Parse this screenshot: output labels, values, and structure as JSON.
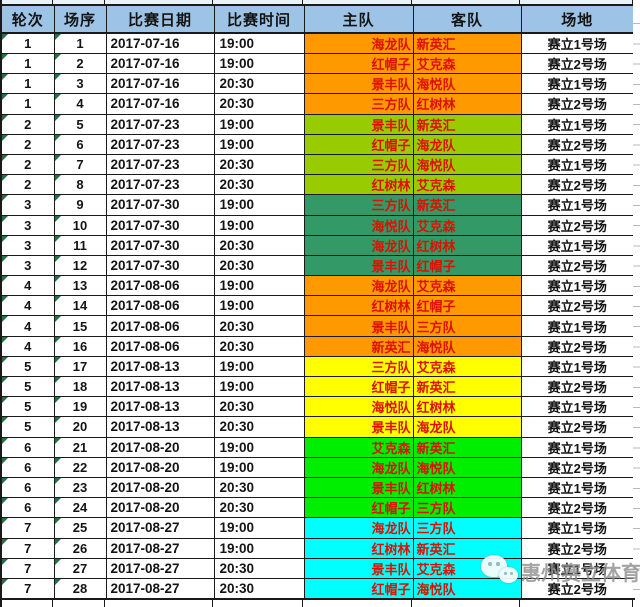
{
  "table": {
    "columns": [
      {
        "key": "round",
        "label": "轮次"
      },
      {
        "key": "match",
        "label": "场序"
      },
      {
        "key": "date",
        "label": "比赛日期"
      },
      {
        "key": "time",
        "label": "比赛时间"
      },
      {
        "key": "home",
        "label": "主队"
      },
      {
        "key": "away",
        "label": "客队"
      },
      {
        "key": "venue",
        "label": "场地"
      }
    ],
    "rows": [
      {
        "round": "1",
        "match": "1",
        "date": "2017-07-16",
        "time": "19:00",
        "home": "海龙队",
        "away": "新英汇",
        "venue": "赛立1号场"
      },
      {
        "round": "1",
        "match": "2",
        "date": "2017-07-16",
        "time": "19:00",
        "home": "红帽子",
        "away": "艾克森",
        "venue": "赛立2号场"
      },
      {
        "round": "1",
        "match": "3",
        "date": "2017-07-16",
        "time": "20:30",
        "home": "景丰队",
        "away": "海悦队",
        "venue": "赛立1号场"
      },
      {
        "round": "1",
        "match": "4",
        "date": "2017-07-16",
        "time": "20:30",
        "home": "三方队",
        "away": "红树林",
        "venue": "赛立2号场"
      },
      {
        "round": "2",
        "match": "5",
        "date": "2017-07-23",
        "time": "19:00",
        "home": "景丰队",
        "away": "新英汇",
        "venue": "赛立1号场"
      },
      {
        "round": "2",
        "match": "6",
        "date": "2017-07-23",
        "time": "19:00",
        "home": "红帽子",
        "away": "海龙队",
        "venue": "赛立2号场"
      },
      {
        "round": "2",
        "match": "7",
        "date": "2017-07-23",
        "time": "20:30",
        "home": "三方队",
        "away": "海悦队",
        "venue": "赛立1号场"
      },
      {
        "round": "2",
        "match": "8",
        "date": "2017-07-23",
        "time": "20:30",
        "home": "红树林",
        "away": "艾克森",
        "venue": "赛立2号场"
      },
      {
        "round": "3",
        "match": "9",
        "date": "2017-07-30",
        "time": "19:00",
        "home": "三方队",
        "away": "新英汇",
        "venue": "赛立1号场"
      },
      {
        "round": "3",
        "match": "10",
        "date": "2017-07-30",
        "time": "19:00",
        "home": "海悦队",
        "away": "艾克森",
        "venue": "赛立2号场"
      },
      {
        "round": "3",
        "match": "11",
        "date": "2017-07-30",
        "time": "20:30",
        "home": "海龙队",
        "away": "红树林",
        "venue": "赛立1号场"
      },
      {
        "round": "3",
        "match": "12",
        "date": "2017-07-30",
        "time": "20:30",
        "home": "景丰队",
        "away": "红帽子",
        "venue": "赛立2号场"
      },
      {
        "round": "4",
        "match": "13",
        "date": "2017-08-06",
        "time": "19:00",
        "home": "海龙队",
        "away": "艾克森",
        "venue": "赛立1号场"
      },
      {
        "round": "4",
        "match": "14",
        "date": "2017-08-06",
        "time": "19:00",
        "home": "红树林",
        "away": "红帽子",
        "venue": "赛立2号场"
      },
      {
        "round": "4",
        "match": "15",
        "date": "2017-08-06",
        "time": "20:30",
        "home": "景丰队",
        "away": "三方队",
        "venue": "赛立1号场"
      },
      {
        "round": "4",
        "match": "16",
        "date": "2017-08-06",
        "time": "20:30",
        "home": "新英汇",
        "away": "海悦队",
        "venue": "赛立2号场"
      },
      {
        "round": "5",
        "match": "17",
        "date": "2017-08-13",
        "time": "19:00",
        "home": "三方队",
        "away": "艾克森",
        "venue": "赛立1号场"
      },
      {
        "round": "5",
        "match": "18",
        "date": "2017-08-13",
        "time": "19:00",
        "home": "红帽子",
        "away": "新英汇",
        "venue": "赛立2号场"
      },
      {
        "round": "5",
        "match": "19",
        "date": "2017-08-13",
        "time": "20:30",
        "home": "海悦队",
        "away": "红树林",
        "venue": "赛立1号场"
      },
      {
        "round": "5",
        "match": "20",
        "date": "2017-08-13",
        "time": "20:30",
        "home": "景丰队",
        "away": "海龙队",
        "venue": "赛立2号场"
      },
      {
        "round": "6",
        "match": "21",
        "date": "2017-08-20",
        "time": "19:00",
        "home": "艾克森",
        "away": "新英汇",
        "venue": "赛立1号场"
      },
      {
        "round": "6",
        "match": "22",
        "date": "2017-08-20",
        "time": "19:00",
        "home": "海龙队",
        "away": "海悦队",
        "venue": "赛立2号场"
      },
      {
        "round": "6",
        "match": "23",
        "date": "2017-08-20",
        "time": "20:30",
        "home": "景丰队",
        "away": "红树林",
        "venue": "赛立1号场"
      },
      {
        "round": "6",
        "match": "24",
        "date": "2017-08-20",
        "time": "20:30",
        "home": "红帽子",
        "away": "三方队",
        "venue": "赛立2号场"
      },
      {
        "round": "7",
        "match": "25",
        "date": "2017-08-27",
        "time": "19:00",
        "home": "海龙队",
        "away": "三方队",
        "venue": "赛立1号场"
      },
      {
        "round": "7",
        "match": "26",
        "date": "2017-08-27",
        "time": "19:00",
        "home": "红树林",
        "away": "新英汇",
        "venue": "赛立2号场"
      },
      {
        "round": "7",
        "match": "27",
        "date": "2017-08-27",
        "time": "20:30",
        "home": "景丰队",
        "away": "艾克森",
        "venue": "赛立1号场"
      },
      {
        "round": "7",
        "match": "28",
        "date": "2017-08-27",
        "time": "20:30",
        "home": "红帽子",
        "away": "海悦队",
        "venue": "赛立2号场"
      }
    ]
  },
  "colors": {
    "header_bg": "#9DC3E6",
    "grid_border": "#1a1a1a",
    "team_text": "#DE1000",
    "triangle": "#217346",
    "watermark_color": "#8e8e8e",
    "round_bands": {
      "1": "#FF9900",
      "2": "#99CC00",
      "3": "#339966",
      "4": "#FF9900",
      "5": "#FFFF00",
      "6": "#00EE00",
      "7": "#00FFFF"
    }
  },
  "watermark": {
    "icon": "wechat-icon",
    "text": "惠州赛立体育"
  }
}
